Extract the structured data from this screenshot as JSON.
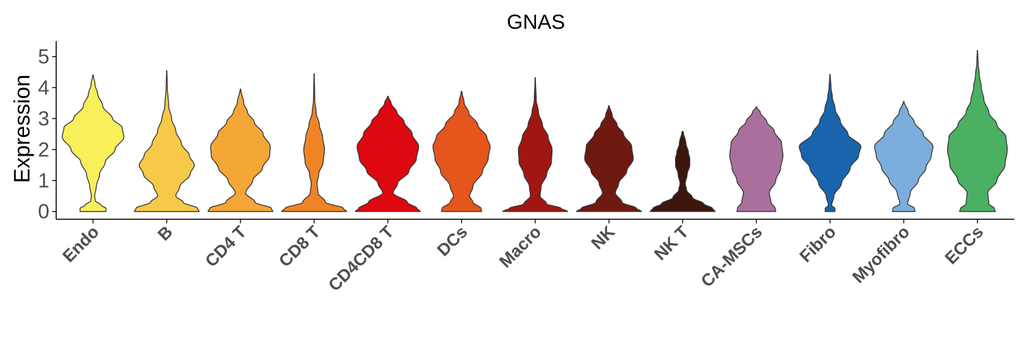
{
  "chart_data": {
    "type": "violin",
    "title": "GNAS",
    "xlabel": "",
    "ylabel": "Expression",
    "ylim": [
      -0.25,
      5.5
    ],
    "yticks": [
      0,
      1,
      2,
      3,
      4,
      5
    ],
    "grid": false,
    "legend": "none",
    "categories": [
      "Endo",
      "B",
      "CD4 T",
      "CD8 T",
      "CD4CD8 T",
      "DCs",
      "Macro",
      "NK",
      "NK T",
      "CA-MSCs",
      "Fibro",
      "Myofibro",
      "ECCs"
    ],
    "colors": [
      "#F7F05A",
      "#F7C948",
      "#F4A636",
      "#EF8426",
      "#DD0710",
      "#E4561B",
      "#A11612",
      "#6E1A11",
      "#3E160E",
      "#A9709E",
      "#1A64AD",
      "#7BAEDC",
      "#4BB062"
    ],
    "outline_color": "#333333",
    "series": [
      {
        "name": "Endo",
        "max": 4.4,
        "profile": [
          [
            0,
            0.4
          ],
          [
            0.1,
            0.4
          ],
          [
            0.2,
            0.25
          ],
          [
            0.35,
            0.07
          ],
          [
            0.5,
            0.05
          ],
          [
            0.8,
            0.1
          ],
          [
            1.2,
            0.2
          ],
          [
            1.6,
            0.38
          ],
          [
            2.0,
            0.68
          ],
          [
            2.4,
            0.95
          ],
          [
            2.7,
            0.9
          ],
          [
            3.0,
            0.6
          ],
          [
            3.4,
            0.3
          ],
          [
            3.8,
            0.14
          ],
          [
            4.1,
            0.06
          ],
          [
            4.4,
            0.01
          ]
        ]
      },
      {
        "name": "B",
        "max": 4.55,
        "profile": [
          [
            0,
            1.0
          ],
          [
            0.1,
            0.95
          ],
          [
            0.3,
            0.5
          ],
          [
            0.5,
            0.28
          ],
          [
            0.8,
            0.4
          ],
          [
            1.2,
            0.72
          ],
          [
            1.5,
            0.85
          ],
          [
            1.8,
            0.7
          ],
          [
            2.2,
            0.45
          ],
          [
            2.6,
            0.28
          ],
          [
            3.0,
            0.15
          ],
          [
            3.4,
            0.06
          ],
          [
            4.0,
            0.02
          ],
          [
            4.55,
            0.005
          ]
        ]
      },
      {
        "name": "CD4 T",
        "max": 3.95,
        "profile": [
          [
            0,
            1.0
          ],
          [
            0.1,
            0.95
          ],
          [
            0.3,
            0.45
          ],
          [
            0.6,
            0.16
          ],
          [
            1.0,
            0.38
          ],
          [
            1.4,
            0.68
          ],
          [
            1.8,
            0.9
          ],
          [
            2.1,
            0.92
          ],
          [
            2.5,
            0.7
          ],
          [
            2.9,
            0.42
          ],
          [
            3.2,
            0.22
          ],
          [
            3.5,
            0.1
          ],
          [
            3.95,
            0.01
          ]
        ]
      },
      {
        "name": "CD8 T",
        "max": 4.45,
        "profile": [
          [
            0,
            1.0
          ],
          [
            0.1,
            0.9
          ],
          [
            0.3,
            0.35
          ],
          [
            0.6,
            0.12
          ],
          [
            0.9,
            0.09
          ],
          [
            1.2,
            0.14
          ],
          [
            1.6,
            0.28
          ],
          [
            2.0,
            0.32
          ],
          [
            2.4,
            0.26
          ],
          [
            2.8,
            0.16
          ],
          [
            3.2,
            0.06
          ],
          [
            3.6,
            0.02
          ],
          [
            4.45,
            0.005
          ]
        ]
      },
      {
        "name": "CD4CD8 T",
        "max": 3.72,
        "profile": [
          [
            0,
            1.0
          ],
          [
            0.1,
            0.9
          ],
          [
            0.3,
            0.6
          ],
          [
            0.6,
            0.16
          ],
          [
            0.9,
            0.3
          ],
          [
            1.3,
            0.65
          ],
          [
            1.7,
            0.88
          ],
          [
            2.1,
            0.95
          ],
          [
            2.5,
            0.75
          ],
          [
            2.9,
            0.5
          ],
          [
            3.2,
            0.28
          ],
          [
            3.5,
            0.1
          ],
          [
            3.72,
            0.01
          ]
        ]
      },
      {
        "name": "DCs",
        "max": 3.88,
        "profile": [
          [
            0,
            0.62
          ],
          [
            0.1,
            0.6
          ],
          [
            0.3,
            0.35
          ],
          [
            0.5,
            0.25
          ],
          [
            0.8,
            0.35
          ],
          [
            1.3,
            0.65
          ],
          [
            1.7,
            0.82
          ],
          [
            2.1,
            0.88
          ],
          [
            2.4,
            0.78
          ],
          [
            2.8,
            0.5
          ],
          [
            3.2,
            0.22
          ],
          [
            3.5,
            0.08
          ],
          [
            3.88,
            0.01
          ]
        ]
      },
      {
        "name": "Macro",
        "max": 4.32,
        "profile": [
          [
            0,
            1.0
          ],
          [
            0.1,
            0.8
          ],
          [
            0.25,
            0.35
          ],
          [
            0.5,
            0.15
          ],
          [
            0.8,
            0.18
          ],
          [
            1.2,
            0.35
          ],
          [
            1.6,
            0.5
          ],
          [
            2.0,
            0.52
          ],
          [
            2.4,
            0.4
          ],
          [
            2.8,
            0.22
          ],
          [
            3.2,
            0.1
          ],
          [
            3.6,
            0.03
          ],
          [
            4.32,
            0.005
          ]
        ]
      },
      {
        "name": "NK",
        "max": 3.42,
        "profile": [
          [
            0,
            1.0
          ],
          [
            0.1,
            0.85
          ],
          [
            0.3,
            0.4
          ],
          [
            0.6,
            0.2
          ],
          [
            0.9,
            0.3
          ],
          [
            1.3,
            0.55
          ],
          [
            1.7,
            0.75
          ],
          [
            2.1,
            0.7
          ],
          [
            2.5,
            0.45
          ],
          [
            2.8,
            0.25
          ],
          [
            3.1,
            0.1
          ],
          [
            3.42,
            0.01
          ]
        ]
      },
      {
        "name": "NK T",
        "max": 2.58,
        "profile": [
          [
            0,
            1.0
          ],
          [
            0.1,
            0.92
          ],
          [
            0.25,
            0.65
          ],
          [
            0.45,
            0.3
          ],
          [
            0.7,
            0.12
          ],
          [
            0.9,
            0.08
          ],
          [
            1.2,
            0.14
          ],
          [
            1.5,
            0.22
          ],
          [
            1.7,
            0.22
          ],
          [
            1.9,
            0.18
          ],
          [
            2.2,
            0.1
          ],
          [
            2.58,
            0.02
          ]
        ]
      },
      {
        "name": "CA-MSCs",
        "max": 3.38,
        "profile": [
          [
            0,
            0.6
          ],
          [
            0.1,
            0.58
          ],
          [
            0.3,
            0.45
          ],
          [
            0.6,
            0.4
          ],
          [
            1.0,
            0.6
          ],
          [
            1.4,
            0.75
          ],
          [
            1.8,
            0.82
          ],
          [
            2.2,
            0.78
          ],
          [
            2.6,
            0.55
          ],
          [
            2.9,
            0.32
          ],
          [
            3.2,
            0.12
          ],
          [
            3.38,
            0.01
          ]
        ]
      },
      {
        "name": "Fibro",
        "max": 4.42,
        "profile": [
          [
            0,
            0.15
          ],
          [
            0.1,
            0.15
          ],
          [
            0.2,
            0.05
          ],
          [
            0.5,
            0.12
          ],
          [
            0.9,
            0.35
          ],
          [
            1.4,
            0.62
          ],
          [
            1.8,
            0.88
          ],
          [
            2.1,
            0.95
          ],
          [
            2.5,
            0.55
          ],
          [
            2.9,
            0.32
          ],
          [
            3.3,
            0.16
          ],
          [
            3.7,
            0.07
          ],
          [
            4.0,
            0.03
          ],
          [
            4.42,
            0.005
          ]
        ]
      },
      {
        "name": "Myofibro",
        "max": 3.55,
        "profile": [
          [
            0,
            0.35
          ],
          [
            0.1,
            0.33
          ],
          [
            0.25,
            0.12
          ],
          [
            0.6,
            0.2
          ],
          [
            1.0,
            0.45
          ],
          [
            1.4,
            0.68
          ],
          [
            1.8,
            0.85
          ],
          [
            2.1,
            0.9
          ],
          [
            2.5,
            0.6
          ],
          [
            2.9,
            0.32
          ],
          [
            3.2,
            0.14
          ],
          [
            3.55,
            0.01
          ]
        ]
      },
      {
        "name": "ECCs",
        "max": 5.2,
        "profile": [
          [
            0,
            0.55
          ],
          [
            0.1,
            0.52
          ],
          [
            0.25,
            0.35
          ],
          [
            0.6,
            0.32
          ],
          [
            1.0,
            0.6
          ],
          [
            1.5,
            0.85
          ],
          [
            2.0,
            0.92
          ],
          [
            2.4,
            0.88
          ],
          [
            2.8,
            0.6
          ],
          [
            3.2,
            0.35
          ],
          [
            3.6,
            0.2
          ],
          [
            4.0,
            0.12
          ],
          [
            4.4,
            0.06
          ],
          [
            4.8,
            0.02
          ],
          [
            5.2,
            0.005
          ]
        ]
      }
    ]
  }
}
